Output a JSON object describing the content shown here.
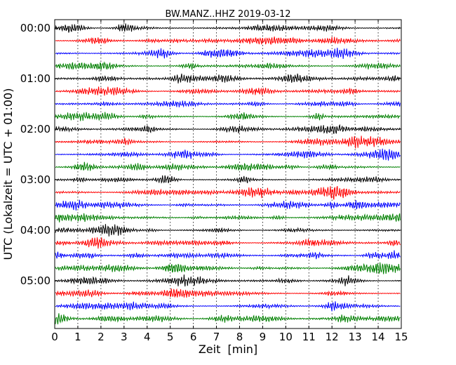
{
  "chart_data": {
    "type": "line",
    "title": "BW.MANZ..HHZ 2019-03-12",
    "xlabel": "Zeit  [min]",
    "ylabel": "UTC (Lokalzeit = UTC + 01:00)",
    "xlim": [
      0,
      15
    ],
    "x_ticks": [
      0,
      1,
      2,
      3,
      4,
      5,
      6,
      7,
      8,
      9,
      10,
      11,
      12,
      13,
      14,
      15
    ],
    "x_tick_labels": [
      "0",
      "1",
      "2",
      "3",
      "4",
      "5",
      "6",
      "7",
      "8",
      "9",
      "10",
      "11",
      "12",
      "13",
      "14",
      "15"
    ],
    "y_tick_labels": [
      "00:00",
      "01:00",
      "02:00",
      "03:00",
      "04:00",
      "05:00"
    ],
    "trace_interval_min": 15,
    "trace_count": 24,
    "trace_colors": [
      "#000000",
      "#ff0000",
      "#0000ff",
      "#008000"
    ],
    "vertical_grid": "dotted",
    "horizontal_grid": false
  }
}
